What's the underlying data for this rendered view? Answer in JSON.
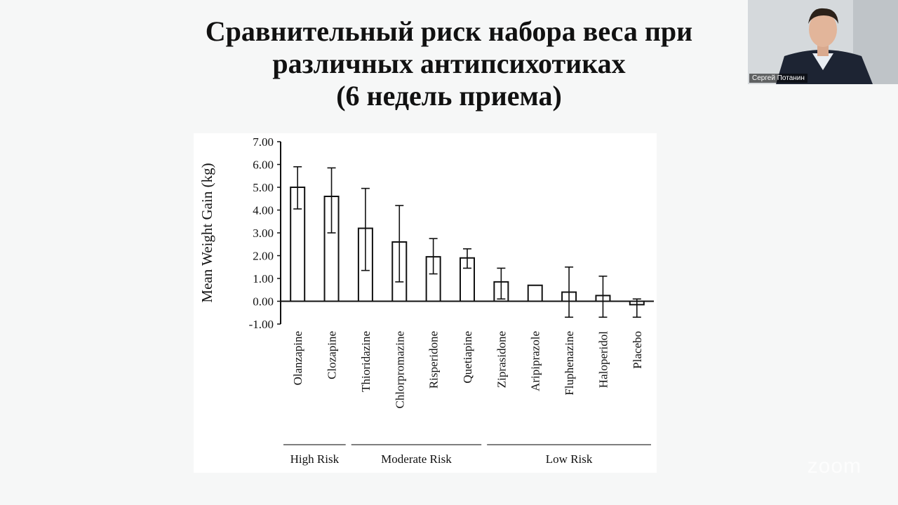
{
  "slide": {
    "title_lines": [
      "Сравнительный риск набора веса при",
      "различных антипсихотиках",
      "(6 недель приема)"
    ]
  },
  "chart_data": {
    "type": "bar",
    "ylabel": "Mean Weight Gain (kg)",
    "ylim": [
      -1,
      7
    ],
    "yticks": [
      "7.00",
      "6.00",
      "5.00",
      "4.00",
      "3.00",
      "2.00",
      "1.00",
      "0.00",
      "-1.00"
    ],
    "ytick_values": [
      7,
      6,
      5,
      4,
      3,
      2,
      1,
      0,
      -1
    ],
    "categories": [
      "Olanzapine",
      "Clozapine",
      "Thioridazine",
      "Chlorpromazine",
      "Risperidone",
      "Quetiapine",
      "Ziprasidone",
      "Aripiprazole",
      "Fluphenazine",
      "Haloperidol",
      "Placebo"
    ],
    "values": [
      5.0,
      4.6,
      3.2,
      2.6,
      1.95,
      1.9,
      0.85,
      0.7,
      0.4,
      0.25,
      -0.15
    ],
    "error_low": [
      4.05,
      3.0,
      1.35,
      0.85,
      1.2,
      1.45,
      0.1,
      null,
      -0.7,
      -0.7,
      -0.7
    ],
    "error_high": [
      5.9,
      5.85,
      4.95,
      4.2,
      2.75,
      2.3,
      1.45,
      null,
      1.5,
      1.1,
      0.1
    ],
    "groups": [
      {
        "label": "High Risk",
        "start": 0,
        "end": 1
      },
      {
        "label": "Moderate Risk",
        "start": 2,
        "end": 5
      },
      {
        "label": "Low Risk",
        "start": 6,
        "end": 10
      }
    ],
    "bar_color": "#ffffff",
    "line_color": "#111111"
  },
  "participant": {
    "name": "Сергей Потанин"
  },
  "watermark": {
    "text": "zoom"
  }
}
